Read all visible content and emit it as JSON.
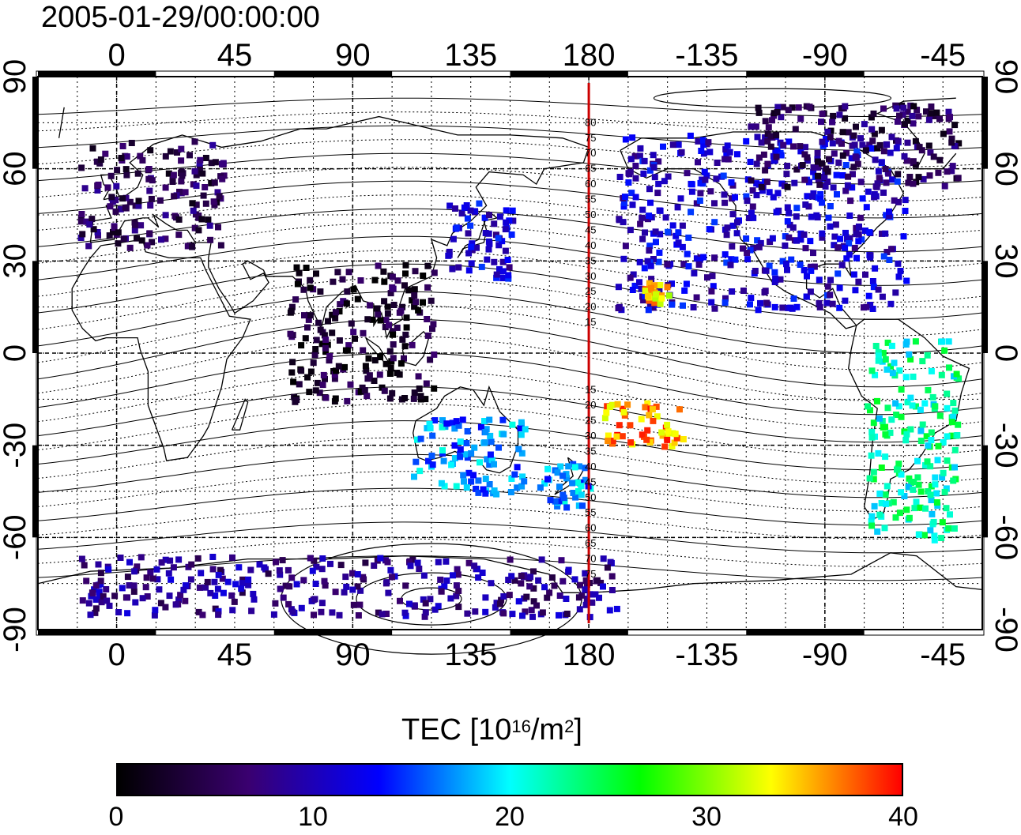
{
  "title": "2005-01-29/00:00:00",
  "map": {
    "top_lon_ticks": [
      "0",
      "45",
      "90",
      "135",
      "180",
      "-135",
      "-90",
      "-45"
    ],
    "bottom_lon_ticks": [
      "0",
      "45",
      "90",
      "135",
      "180",
      "-135",
      "-90",
      "-45"
    ],
    "left_lat_ticks": [
      "90",
      "60",
      "30",
      "0",
      "-30",
      "-60",
      "-90"
    ],
    "right_lat_ticks": [
      "90",
      "60",
      "30",
      "0",
      "-30",
      "-60",
      "-90"
    ],
    "meridian_line_color": "#cc0000",
    "magnetic_latitude_labels": [
      "80",
      "75",
      "70",
      "65",
      "60",
      "55",
      "50",
      "45",
      "40",
      "35",
      "30",
      "25",
      "20",
      "15",
      "15",
      "20",
      "25",
      "30",
      "35",
      "40",
      "45",
      "50",
      "55",
      "60",
      "65",
      "70",
      "75"
    ]
  },
  "colorbar": {
    "title_prefix": "TEC  [10",
    "title_sup1": "16",
    "title_mid": "/m",
    "title_sup2": "2",
    "title_suffix": "]",
    "tick_labels": [
      "0",
      "10",
      "20",
      "30",
      "40"
    ],
    "min": 0,
    "max": 40,
    "colors": [
      "#000000",
      "#3a0070",
      "#0000ff",
      "#00ffff",
      "#00ff00",
      "#ffff00",
      "#ff0000"
    ]
  },
  "tec_clusters": [
    {
      "region": "Europe",
      "lon": [
        -15,
        40
      ],
      "lat": [
        35,
        70
      ],
      "tec": 5
    },
    {
      "region": "Japan",
      "lon": [
        125,
        150
      ],
      "lat": [
        25,
        50
      ],
      "tec": 11
    },
    {
      "region": "North America",
      "lon": [
        -170,
        -60
      ],
      "lat": [
        15,
        72
      ],
      "tec": 11
    },
    {
      "region": "Alaska/Canada north",
      "lon": [
        -120,
        -40
      ],
      "lat": [
        55,
        82
      ],
      "tec": 5
    },
    {
      "region": "Australia",
      "lon": [
        112,
        155
      ],
      "lat": [
        -45,
        -20
      ],
      "tec": 17
    },
    {
      "region": "New Zealand",
      "lon": [
        160,
        180
      ],
      "lat": [
        -50,
        -35
      ],
      "tec": 17
    },
    {
      "region": "Pacific tropics",
      "lon": [
        -175,
        -145
      ],
      "lat": [
        -30,
        -15
      ],
      "tec": 36
    },
    {
      "region": "Hawaii",
      "lon": [
        -160,
        -150
      ],
      "lat": [
        17,
        24
      ],
      "tec": 34
    },
    {
      "region": "South America",
      "lon": [
        -75,
        -40
      ],
      "lat": [
        -60,
        5
      ],
      "tec": 22
    },
    {
      "region": "India/SE Asia",
      "lon": [
        65,
        120
      ],
      "lat": [
        -15,
        30
      ],
      "tec": 3
    },
    {
      "region": "Antarctica",
      "lon": [
        -15,
        190
      ],
      "lat": [
        -85,
        -65
      ],
      "tec": 8
    }
  ]
}
